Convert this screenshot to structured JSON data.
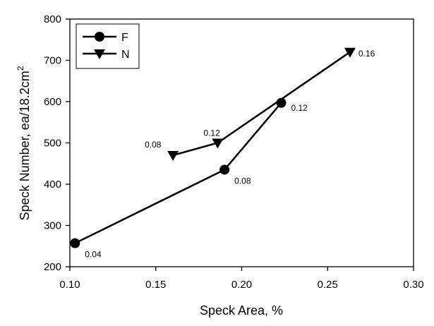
{
  "chart_data": {
    "type": "line",
    "title": "",
    "xlabel": "Speck Area, %",
    "ylabel_main": "Speck Number, ea/18.2cm",
    "ylabel_sup": "2",
    "xlim": [
      0.1,
      0.3
    ],
    "ylim": [
      200,
      800
    ],
    "x_ticks": [
      0.1,
      0.15,
      0.2,
      0.25,
      0.3
    ],
    "x_tick_labels": [
      "0.10",
      "0.15",
      "0.20",
      "0.25",
      "0.30"
    ],
    "y_ticks": [
      200,
      300,
      400,
      500,
      600,
      700,
      800
    ],
    "y_tick_labels": [
      "200",
      "300",
      "400",
      "500",
      "600",
      "700",
      "800"
    ],
    "grid": false,
    "legend_position": "top-left",
    "series": [
      {
        "name": "F",
        "marker": "circle",
        "x": [
          0.103,
          0.19,
          0.223
        ],
        "y": [
          257,
          435,
          597
        ],
        "labels": [
          "0.04",
          "0.08",
          "0.12"
        ]
      },
      {
        "name": "N",
        "marker": "triangle-down",
        "x": [
          0.16,
          0.186,
          0.263
        ],
        "y": [
          470,
          500,
          720
        ],
        "labels": [
          "0.08",
          "0.12",
          "0.16"
        ]
      }
    ]
  }
}
